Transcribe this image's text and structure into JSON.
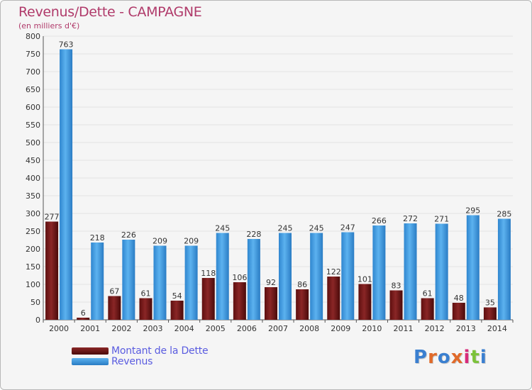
{
  "chart_data": {
    "type": "bar",
    "title": "Revenus/Dette - CAMPAGNE",
    "subtitle": "(en milliers d'€)",
    "categories": [
      "2000",
      "2001",
      "2002",
      "2003",
      "2004",
      "2005",
      "2006",
      "2007",
      "2008",
      "2009",
      "2010",
      "2011",
      "2012",
      "2013",
      "2014"
    ],
    "series": [
      {
        "name": "Montant de la Dette",
        "color": "#7a1a1a",
        "values": [
          277,
          6,
          67,
          61,
          54,
          118,
          106,
          92,
          86,
          122,
          101,
          83,
          61,
          48,
          35
        ]
      },
      {
        "name": "Revenus",
        "color": "#3c9ae0",
        "values": [
          763,
          218,
          226,
          209,
          209,
          245,
          228,
          245,
          245,
          247,
          266,
          272,
          271,
          295,
          285
        ]
      }
    ],
    "ylim": [
      0,
      800
    ],
    "ytick_step": 50,
    "yticks": [
      "0",
      "50",
      "100",
      "150",
      "200",
      "250",
      "300",
      "350",
      "400",
      "450",
      "500",
      "550",
      "600",
      "650",
      "700",
      "750",
      "800"
    ],
    "grid": true,
    "legend_position": "bottom-left"
  },
  "legend": {
    "items": [
      {
        "label": "Montant de la Dette",
        "color": "#7a1a1a"
      },
      {
        "label": "Revenus",
        "color": "#3c9ae0"
      }
    ]
  },
  "logo": {
    "text": "Proxiti"
  }
}
